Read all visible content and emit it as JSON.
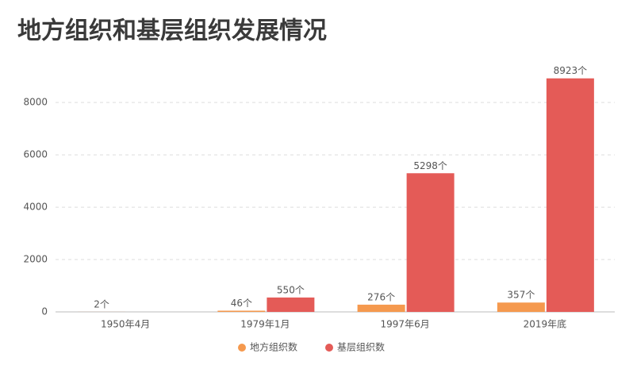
{
  "chart_data": {
    "type": "bar",
    "title": "地方组织和基层组织发展情况",
    "categories": [
      "1950年4月",
      "1979年1月",
      "1997年6月",
      "2019年底"
    ],
    "series": [
      {
        "name": "地方组织数",
        "color": "#f5994e",
        "values": [
          2,
          46,
          276,
          357
        ],
        "value_labels": [
          "2个",
          "46个",
          "276个",
          "357个"
        ]
      },
      {
        "name": "基层组织数",
        "color": "#e45b57",
        "values": [
          null,
          550,
          5298,
          8923
        ],
        "value_labels": [
          null,
          "550个",
          "5298个",
          "8923个"
        ]
      }
    ],
    "ylim": [
      0,
      9400
    ],
    "yticks": [
      0,
      2000,
      4000,
      6000,
      8000
    ],
    "grid": true,
    "legend": "bottom"
  }
}
